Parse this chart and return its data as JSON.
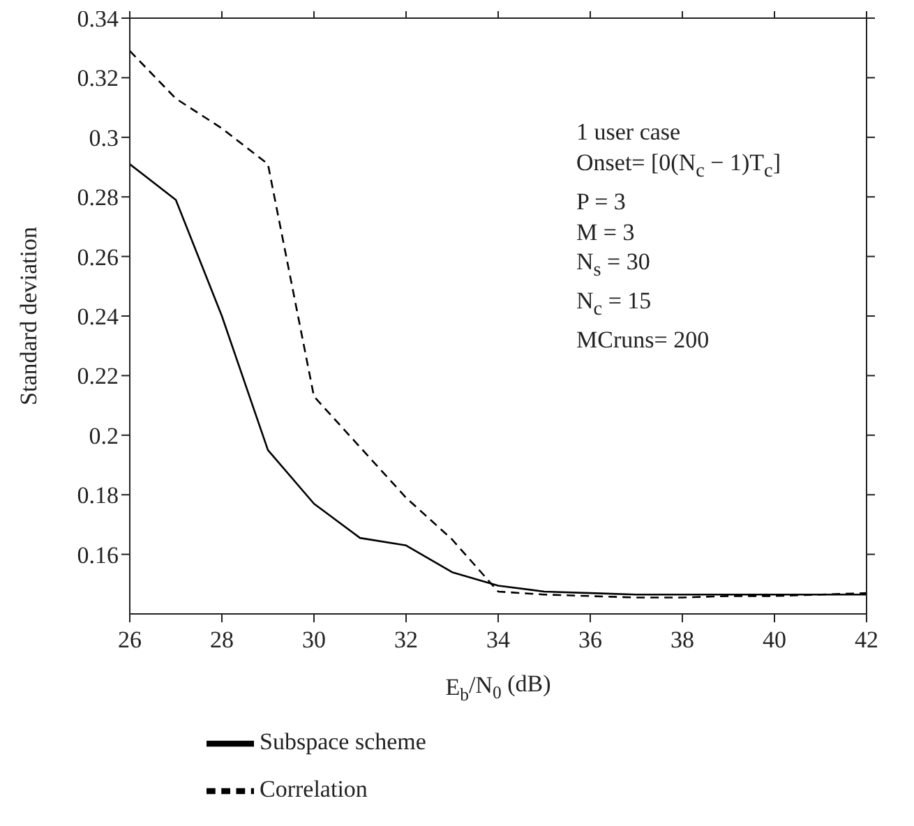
{
  "chart_data": {
    "type": "line",
    "xlabel": "E$_{b}$/N$_{0}$ (dB)",
    "ylabel": "Standard deviation",
    "x": [
      26,
      27,
      28,
      29,
      30,
      31,
      32,
      33,
      34,
      35,
      36,
      37,
      38,
      39,
      40,
      41,
      42
    ],
    "series": [
      {
        "name": "Subspace scheme",
        "color": "#000000",
        "line_style": "solid",
        "values": [
          0.291,
          0.279,
          0.24,
          0.195,
          0.177,
          0.1655,
          0.163,
          0.154,
          0.1495,
          0.1475,
          0.147,
          0.1465,
          0.1465,
          0.1465,
          0.1465,
          0.1465,
          0.1465
        ]
      },
      {
        "name": "Correlation",
        "color": "#000000",
        "line_style": "dashed",
        "values": [
          0.329,
          0.313,
          0.303,
          0.291,
          0.213,
          0.196,
          0.179,
          0.165,
          0.1475,
          0.1465,
          0.146,
          0.1455,
          0.1455,
          0.146,
          0.146,
          0.1465,
          0.147
        ]
      }
    ],
    "xlim": [
      26,
      42
    ],
    "xticks": [
      26,
      28,
      30,
      32,
      34,
      36,
      38,
      40,
      42
    ],
    "ylim": [
      0.14,
      0.34
    ],
    "yticks": [
      0.16,
      0.18,
      0.2,
      0.22,
      0.24,
      0.26,
      0.28,
      0.3,
      0.32,
      0.34
    ],
    "grid": false,
    "legend": "bottom left",
    "marker": "none",
    "annotations": [
      "1 user case",
      "Onset= [0(N$_{c}$ − 1)T$_{c}$]",
      "P = 3",
      "M = 3",
      "N$_{s}$ = 30",
      "N$_{c}$ = 15",
      "MCruns= 200"
    ]
  }
}
